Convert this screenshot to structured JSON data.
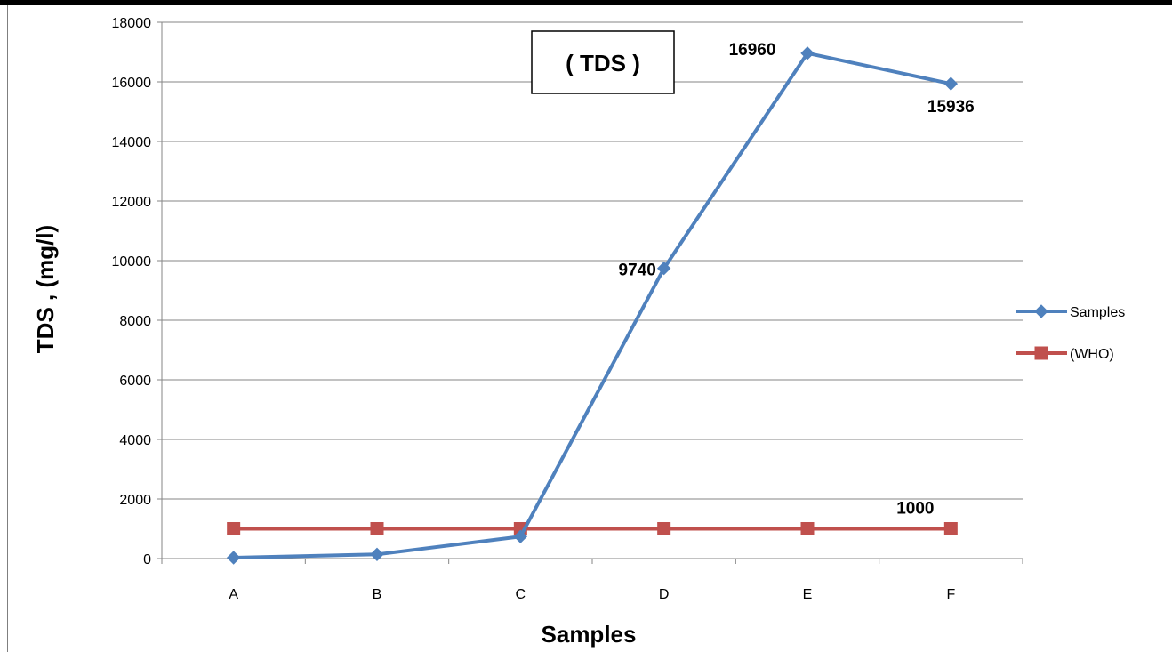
{
  "chart_data": {
    "type": "line",
    "title": "( TDS )",
    "xlabel": "Samples",
    "ylabel": "TDS , (mg/l)",
    "categories": [
      "A",
      "B",
      "C",
      "D",
      "E",
      "F"
    ],
    "ylim": [
      0,
      18000
    ],
    "yticks": [
      0,
      2000,
      4000,
      6000,
      8000,
      10000,
      12000,
      14000,
      16000,
      18000
    ],
    "grid": true,
    "legend_position": "right",
    "series": [
      {
        "name": "Samples",
        "color": "#4F81BD",
        "marker": "diamond",
        "values": [
          30,
          140,
          740,
          9740,
          16960,
          15936
        ]
      },
      {
        "name": "(WHO)",
        "color": "#C0504D",
        "marker": "square",
        "values": [
          1000,
          1000,
          1000,
          1000,
          1000,
          1000
        ]
      }
    ],
    "data_labels": [
      {
        "series": 0,
        "index": 3,
        "text": "9740"
      },
      {
        "series": 0,
        "index": 4,
        "text": "16960"
      },
      {
        "series": 0,
        "index": 5,
        "text": "15936"
      },
      {
        "series": 1,
        "index": 5,
        "text": "1000"
      }
    ]
  }
}
